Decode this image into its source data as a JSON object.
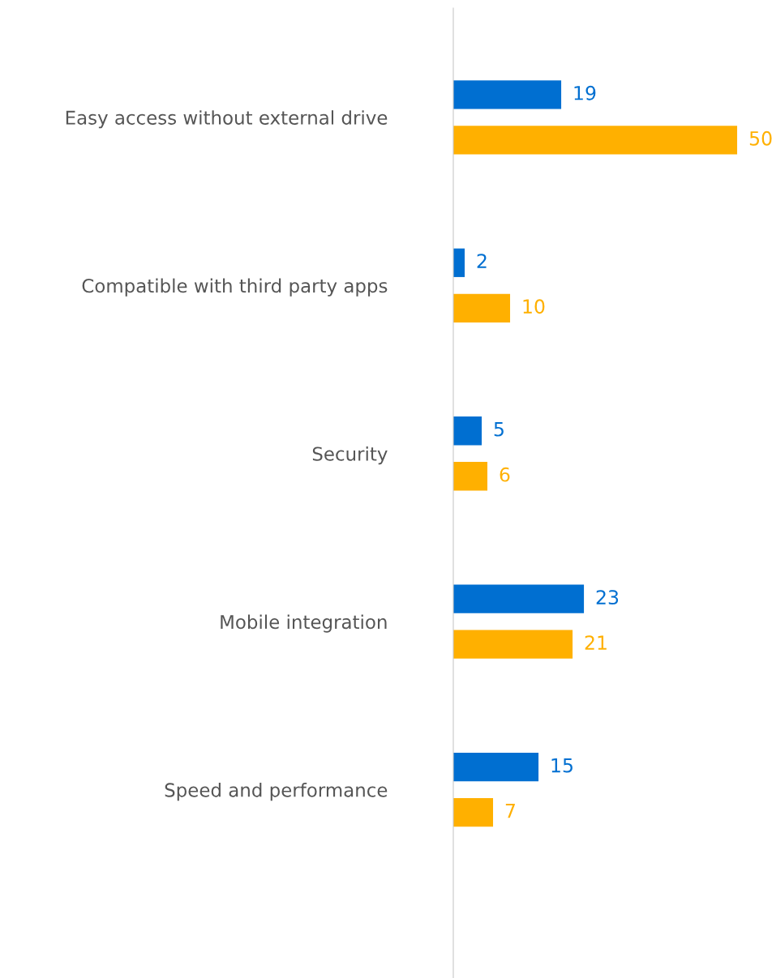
{
  "chart_data": {
    "type": "bar",
    "orientation": "horizontal",
    "data_labels": true,
    "categories": [
      "Easy access without external drive",
      "Compatible with third party apps",
      "Security",
      "Mobile integration",
      "Speed and performance"
    ],
    "series": [
      {
        "color": "#006fd1",
        "values": [
          19,
          2,
          5,
          23,
          15
        ]
      },
      {
        "color": "#ffb000",
        "values": [
          50,
          10,
          6,
          21,
          7
        ]
      }
    ]
  }
}
